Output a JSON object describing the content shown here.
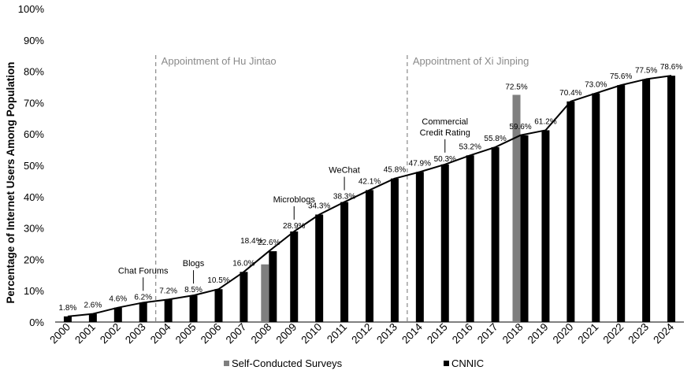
{
  "chart_data": {
    "type": "bar",
    "ylabel": "Percentage of Internet Users Among Population",
    "ylim": [
      0,
      100
    ],
    "yticks": [
      "0%",
      "10%",
      "20%",
      "30%",
      "40%",
      "50%",
      "60%",
      "70%",
      "80%",
      "90%",
      "100%"
    ],
    "categories": [
      "2000",
      "2001",
      "2002",
      "2003",
      "2004",
      "2005",
      "2006",
      "2007",
      "2008",
      "2009",
      "2010",
      "2011",
      "2012",
      "2013",
      "2014",
      "2015",
      "2016",
      "2017",
      "2018",
      "2019",
      "2020",
      "2021",
      "2022",
      "2023",
      "2024"
    ],
    "series": [
      {
        "name": "CNNIC",
        "color": "#000000",
        "values": [
          1.8,
          2.6,
          4.6,
          6.2,
          7.2,
          8.5,
          10.5,
          16.0,
          22.6,
          28.9,
          34.3,
          38.3,
          42.1,
          45.8,
          47.9,
          50.3,
          53.2,
          55.8,
          59.6,
          61.2,
          70.4,
          73.0,
          75.6,
          77.5,
          78.6
        ],
        "labels": [
          "1.8%",
          "2.6%",
          "4.6%",
          "6.2%",
          "7.2%",
          "8.5%",
          "10.5%",
          "16.0%",
          "22.6%",
          "28.9%",
          "34.3%",
          "38.3%",
          "42.1%",
          "45.8%",
          "47.9%",
          "50.3%",
          "53.2%",
          "55.8%",
          "59.6%",
          "61.2%",
          "70.4%",
          "73.0%",
          "75.6%",
          "77.5%",
          "78.6%"
        ]
      },
      {
        "name": "Self-Conducted Surveys",
        "color": "#7f7f7f",
        "points": [
          {
            "category": "2008",
            "value": 18.4,
            "label": "18.4%"
          },
          {
            "category": "2018",
            "value": 72.5,
            "label": "72.5%"
          }
        ]
      }
    ],
    "era_lines": [
      {
        "after": "2003",
        "label": "Appointment of Hu Jintao"
      },
      {
        "after": "2013",
        "label": "Appointment of Xi Jinping"
      }
    ],
    "annotations": [
      {
        "category": "2003",
        "lines": [
          "Chat Forums"
        ],
        "value": 6.2
      },
      {
        "category": "2005",
        "lines": [
          "Blogs"
        ],
        "value": 8.5
      },
      {
        "category": "2009",
        "lines": [
          "Microblogs"
        ],
        "value": 28.9
      },
      {
        "category": "2011",
        "lines": [
          "WeChat"
        ],
        "value": 38.3
      },
      {
        "category": "2015",
        "lines": [
          "Commercial",
          "Credit Rating"
        ],
        "value": 50.3
      }
    ],
    "legend": [
      {
        "label": "Self-Conducted Surveys",
        "color": "#7f7f7f"
      },
      {
        "label": "CNNIC",
        "color": "#000000"
      }
    ],
    "legend_position": "bottom"
  }
}
